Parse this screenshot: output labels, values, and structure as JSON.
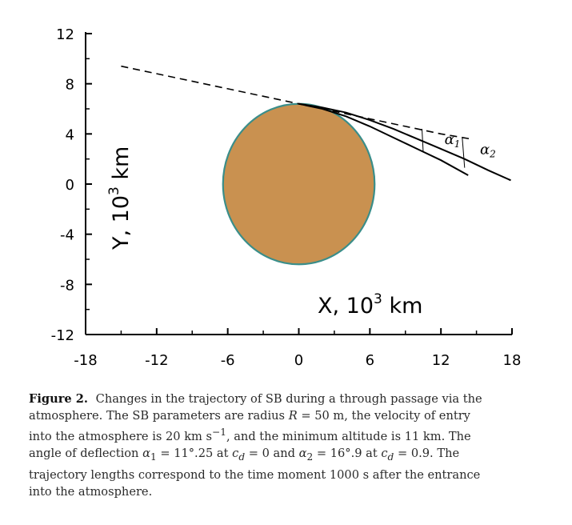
{
  "chart_data": {
    "type": "line",
    "xlabel": "X, 10",
    "xlabel_sup": "3",
    "xlabel_unit": " km",
    "ylabel": "Y, 10",
    "ylabel_sup": "3",
    "ylabel_unit": " km",
    "xlim": [
      -18,
      18
    ],
    "ylim": [
      -12,
      12
    ],
    "xticks": [
      -18,
      -12,
      -6,
      0,
      6,
      12,
      18
    ],
    "yticks": [
      12,
      8,
      4,
      0,
      -4,
      -8,
      -12
    ],
    "xtick_labels": [
      "-18",
      "-12",
      "-6",
      "0",
      "6",
      "12",
      "18"
    ],
    "ytick_labels": [
      "12",
      "8",
      "4",
      "0",
      "-4",
      "-8",
      "-12"
    ],
    "grid": false,
    "planet": {
      "center": [
        0,
        0
      ],
      "radius": 6.4,
      "fill": "#c99150",
      "stroke": "#3a8e8a"
    },
    "series": [
      {
        "name": "initial trajectory (tangent)",
        "style": "dashed",
        "x": [
          -15,
          0,
          3,
          6,
          9,
          12,
          14.5
        ],
        "y": [
          9.4,
          6.4,
          5.8,
          5.2,
          4.6,
          4.0,
          3.6
        ]
      },
      {
        "name": "trajectory at c_d = 0",
        "style": "solid",
        "x": [
          0,
          2,
          4,
          6,
          8,
          10,
          12,
          14.3
        ],
        "y": [
          6.4,
          6.0,
          5.4,
          4.6,
          3.7,
          2.8,
          1.9,
          0.7
        ]
      },
      {
        "name": "trajectory at c_d = 0.9",
        "style": "solid",
        "x": [
          0,
          2,
          4,
          6,
          8,
          10,
          12,
          14,
          16,
          17.9
        ],
        "y": [
          6.4,
          6.1,
          5.7,
          5.1,
          4.4,
          3.6,
          2.8,
          2.0,
          1.1,
          0.3
        ]
      }
    ],
    "annotations": [
      {
        "text": "α1",
        "x": 12.3,
        "y": 3.2
      },
      {
        "text": "α2",
        "x": 15.3,
        "y": 2.4
      }
    ],
    "angle_markers": [
      {
        "x1": 10.4,
        "y1": 4.4,
        "x2": 10.5,
        "y2": 2.6
      },
      {
        "x1": 13.8,
        "y1": 3.7,
        "x2": 14.0,
        "y2": 1.3
      }
    ]
  },
  "caption": {
    "label": "Figure 2.",
    "lines": [
      "Changes in the trajectory of SB during a through passage via the",
      "atmosphere. The SB parameters are radius <i>R</i> = 50 m, the velocity of entry",
      "into the atmosphere is 20 km s<sup>−1</sup>, and the minimum altitude is 11 km. The",
      "angle of deflection <i>α</i><sub>1</sub> = 11°.25 at <i>c</i><sub><i>d</i></sub> = 0 and <i>α</i><sub>2</sub> = 16°.9 at <i>c</i><sub><i>d</i></sub> = 0.9. The",
      "trajectory lengths correspond to the time moment 1000 s after the entrance",
      "into the atmosphere."
    ]
  }
}
